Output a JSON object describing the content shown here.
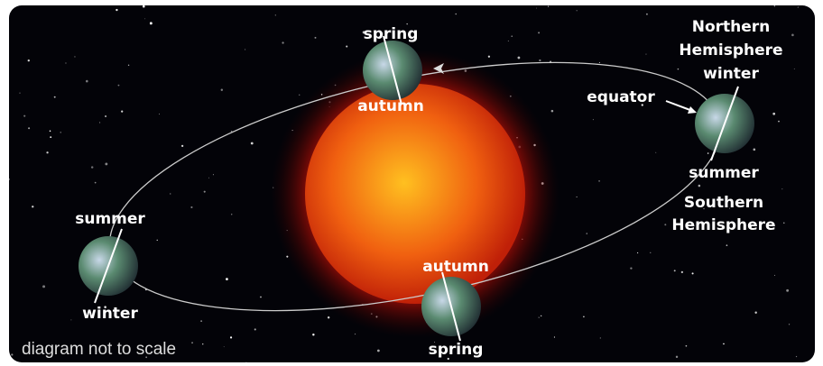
{
  "earths": {
    "top": {
      "above": "spring",
      "below": "autumn"
    },
    "right": {
      "above": "winter",
      "below": "summer"
    },
    "left": {
      "above": "summer",
      "below": "winter"
    },
    "bottom": {
      "above": "autumn",
      "below": "spring"
    }
  },
  "northern_hemisphere": [
    "Northern",
    "Hemisphere"
  ],
  "southern_hemisphere": [
    "Southern",
    "Hemisphere"
  ],
  "equator": "equator",
  "note": "diagram not to scale"
}
